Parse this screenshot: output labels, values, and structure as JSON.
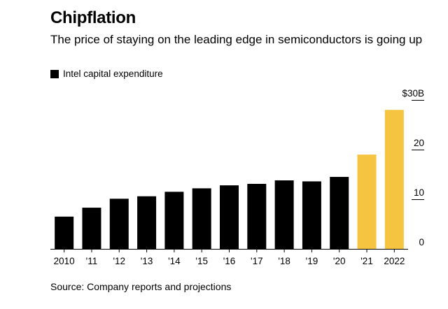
{
  "title": "Chipflation",
  "subtitle": "The price of staying on the leading edge in semiconductors is going up",
  "source": "Source: Company reports and projections",
  "colors": {
    "actual": "#000000",
    "projected": "#F5C542"
  },
  "chart_data": {
    "type": "bar",
    "legend": [
      {
        "label": "Intel capital expenditure",
        "color": "#000000"
      }
    ],
    "legend_position": "top-left",
    "categories": [
      "2010",
      "'11",
      "'12",
      "'13",
      "'14",
      "'15",
      "'16",
      "'17",
      "'18",
      "'19",
      "'20",
      "'21",
      "2022"
    ],
    "series": [
      {
        "name": "Intel capital expenditure",
        "values": [
          6.5,
          8.3,
          10.1,
          10.6,
          11.5,
          12.2,
          12.8,
          13.1,
          13.8,
          13.6,
          14.5,
          19.0,
          28.0
        ],
        "projected": [
          false,
          false,
          false,
          false,
          false,
          false,
          false,
          false,
          false,
          false,
          false,
          true,
          true
        ]
      }
    ],
    "y_ticks": [
      {
        "value": 0,
        "label": "0"
      },
      {
        "value": 10,
        "label": "10"
      },
      {
        "value": 20,
        "label": "20"
      },
      {
        "value": 30,
        "label": "$30B"
      }
    ],
    "ylim": [
      0,
      30
    ],
    "grid": false
  }
}
